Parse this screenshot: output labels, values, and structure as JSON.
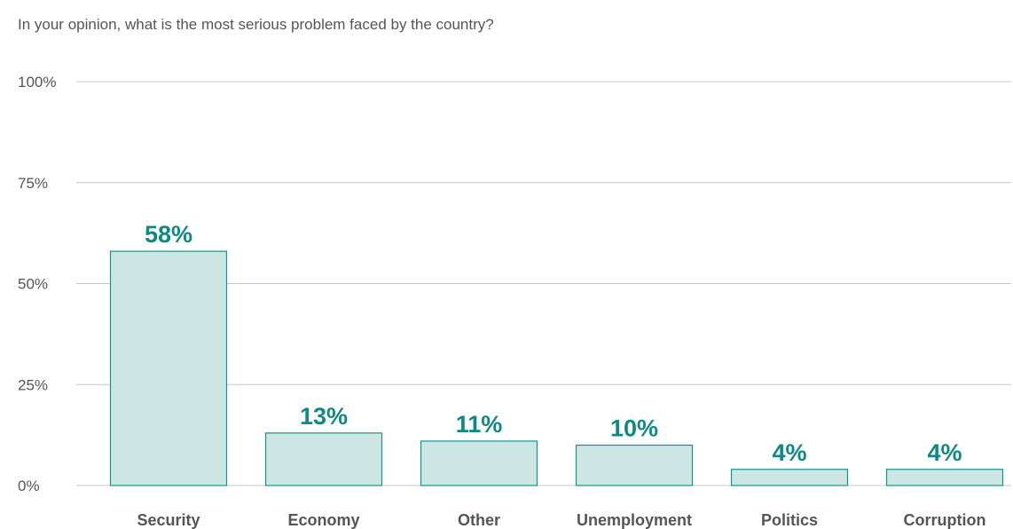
{
  "chart_data": {
    "type": "bar",
    "title": "In your opinion, what is the most serious problem faced by the country?",
    "categories": [
      "Security",
      "Economy",
      "Other",
      "Unemployment",
      "Politics",
      "Corruption"
    ],
    "values": [
      58,
      13,
      11,
      10,
      4,
      4
    ],
    "data_labels": [
      "58%",
      "13%",
      "11%",
      "10%",
      "4%",
      "4%"
    ],
    "ylim": [
      0,
      100
    ],
    "yticks": [
      0,
      25,
      50,
      75,
      100
    ],
    "ytick_labels": [
      "0%",
      "25%",
      "50%",
      "75%",
      "100%"
    ],
    "xlabel": "",
    "ylabel": "",
    "grid": true,
    "legend": "none"
  },
  "colors": {
    "bar_fill": "#cde6e4",
    "bar_stroke": "#12968c",
    "data_label": "#0e8a82",
    "grid": "#c8c8c8",
    "text": "#555555"
  }
}
